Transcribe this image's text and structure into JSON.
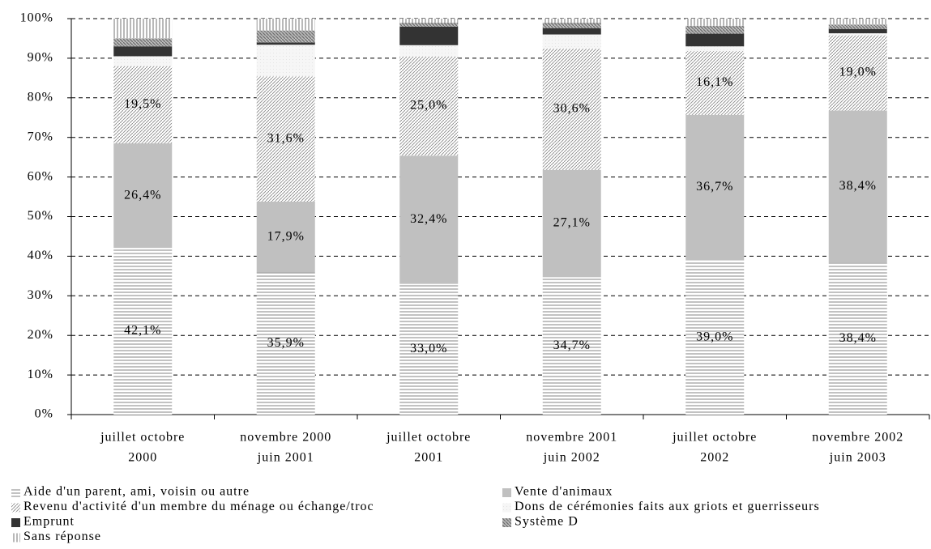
{
  "chart_data": {
    "type": "stacked_percent_bar",
    "categories": [
      [
        "juillet octobre",
        "2000"
      ],
      [
        "novembre 2000",
        "juin 2001"
      ],
      [
        "juillet octobre",
        "2001"
      ],
      [
        "novembre 2001",
        "juin 2002"
      ],
      [
        "juillet octobre",
        "2002"
      ],
      [
        "novembre 2002",
        "juin 2003"
      ]
    ],
    "ylim": [
      0,
      100
    ],
    "yticks": [
      {
        "value": 0,
        "label": "0%"
      },
      {
        "value": 10,
        "label": "10%"
      },
      {
        "value": 20,
        "label": "20%"
      },
      {
        "value": 30,
        "label": "30%"
      },
      {
        "value": 40,
        "label": "40%"
      },
      {
        "value": 50,
        "label": "50%"
      },
      {
        "value": 60,
        "label": "60%"
      },
      {
        "value": 70,
        "label": "70%"
      },
      {
        "value": 80,
        "label": "80%"
      },
      {
        "value": 90,
        "label": "90%"
      },
      {
        "value": 100,
        "label": "100%"
      }
    ],
    "grid": true,
    "series": [
      {
        "name": "Aide d'un parent, ami, voisin ou autre",
        "color": "#9a9a9a",
        "pattern": "horizontal",
        "values": [
          42.1,
          35.9,
          33.0,
          34.7,
          39.0,
          38.4
        ],
        "value_labels": [
          "42,1%",
          "35,9%",
          "33,0%",
          "34,7%",
          "39,0%",
          "38,4%"
        ]
      },
      {
        "name": "Vente d'animaux",
        "color": "#c0c0c0",
        "pattern": "solid",
        "values": [
          26.4,
          17.9,
          32.4,
          27.1,
          36.7,
          38.4
        ],
        "value_labels": [
          "26,4%",
          "17,9%",
          "32,4%",
          "27,1%",
          "36,7%",
          "38,4%"
        ]
      },
      {
        "name": "Revenu d'activité d'un membre du ménage ou échange/troc",
        "color": "#8a8a8a",
        "pattern": "diagonal",
        "values": [
          19.5,
          31.6,
          25.0,
          30.6,
          16.1,
          19.0
        ],
        "value_labels": [
          "19,5%",
          "31,6%",
          "25,0%",
          "30,6%",
          "16,1%",
          "19,0%"
        ]
      },
      {
        "name": "Dons de cérémonies faits aux griots et guerrisseurs",
        "color": "#e4e4e4",
        "pattern": "dots",
        "values": [
          2.5,
          8.0,
          2.9,
          3.6,
          1.2,
          0.5
        ]
      },
      {
        "name": "Emprunt",
        "color": "#333333",
        "pattern": "solid",
        "values": [
          2.5,
          0.6,
          4.7,
          1.6,
          3.2,
          1.1
        ]
      },
      {
        "name": "Système D",
        "color": "#6e6e6e",
        "pattern": "dense",
        "values": [
          2.0,
          3.0,
          1.0,
          1.4,
          2.0,
          1.1
        ]
      },
      {
        "name": "Sans réponse",
        "color": "#8a8a8a",
        "pattern": "vertical",
        "values": [
          5.0,
          3.0,
          1.0,
          1.0,
          1.8,
          1.5
        ]
      }
    ]
  }
}
